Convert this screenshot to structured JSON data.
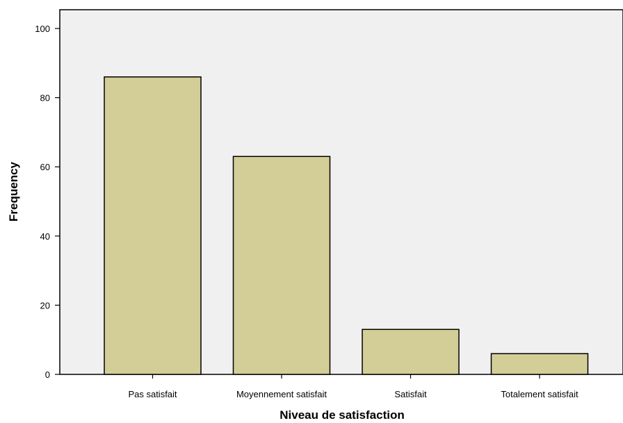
{
  "chart_data": {
    "type": "bar",
    "title": "",
    "xlabel": "Niveau de satisfaction",
    "ylabel": "Frequency",
    "categories": [
      "Pas satisfait",
      "Moyennement satisfait",
      "Satisfait",
      "Totalement satisfait"
    ],
    "values": [
      86,
      63,
      13,
      6
    ],
    "ylim": [
      0,
      105
    ],
    "yticks": [
      0,
      20,
      40,
      60,
      80,
      100
    ],
    "grid": false,
    "legend": "none",
    "colors": {
      "bar_fill": "#d3ce97",
      "bar_stroke": "#000000",
      "plot_background": "#f0f0f0",
      "axis": "#000000"
    }
  }
}
